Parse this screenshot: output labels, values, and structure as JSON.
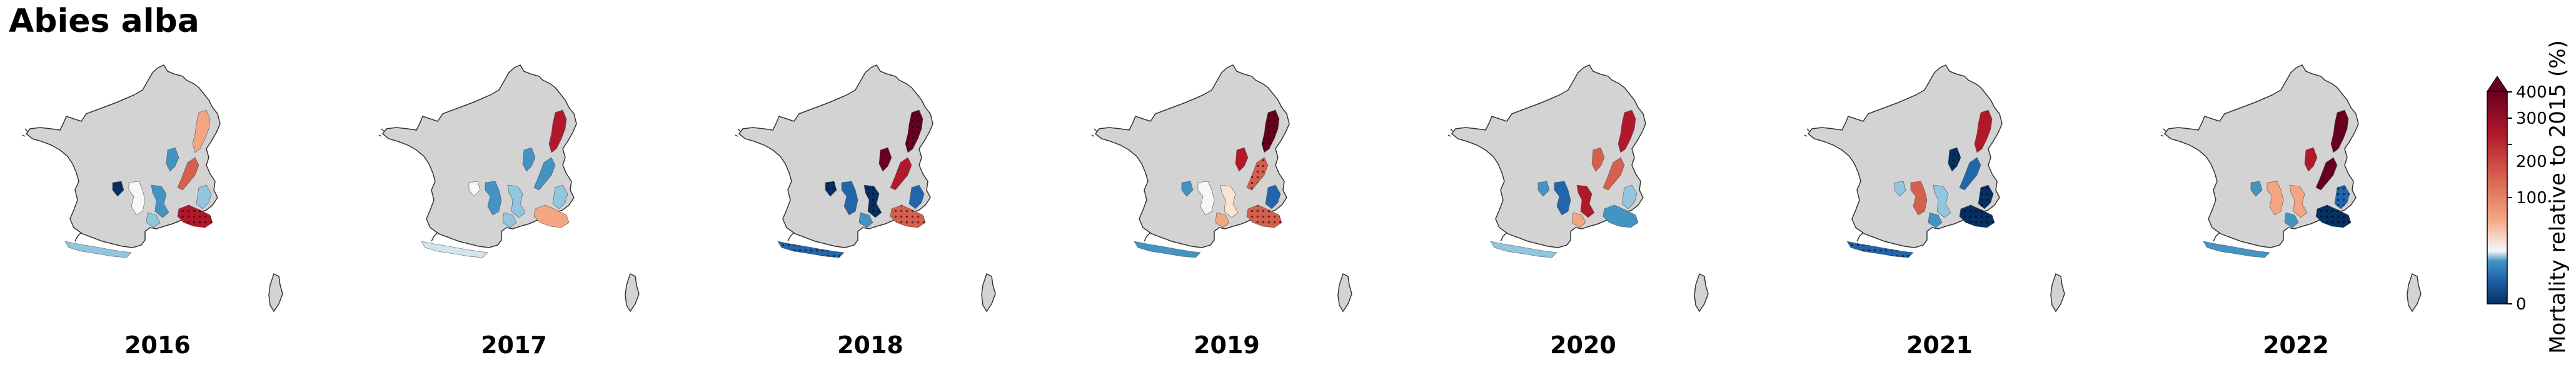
{
  "title": "Abies alba",
  "years": [
    "2016",
    "2017",
    "2018",
    "2019",
    "2020",
    "2021",
    "2022"
  ],
  "colorbar": {
    "label": "Mortality relative to 2015 (%)",
    "ticks": [
      "0",
      "100",
      "200",
      "300",
      "400"
    ],
    "colors": [
      "#053061",
      "#2166ac",
      "#4393c3",
      "#92c5de",
      "#f7f7f7",
      "#f4a582",
      "#d6604d",
      "#b2182b",
      "#67001f"
    ]
  },
  "colors": {
    "land": "#d3d3d3",
    "outline": "#333333"
  }
}
